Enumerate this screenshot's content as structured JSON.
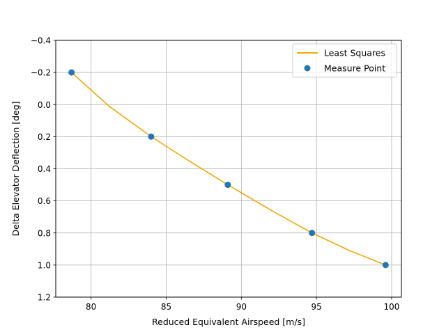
{
  "chart_data": {
    "type": "line",
    "title": "",
    "xlabel": "Reduced Equivalent Airspeed [m/s]",
    "ylabel": "Delta Elevator Deflection [deg]",
    "xlim": [
      77.65,
      100.65
    ],
    "ylim": [
      1.2,
      -0.4
    ],
    "y_inverted": true,
    "grid": true,
    "legend_position": "top-right",
    "xticks": [
      80,
      85,
      90,
      95,
      100
    ],
    "xtick_labels": [
      "80",
      "85",
      "90",
      "95",
      "100"
    ],
    "yticks": [
      -0.4,
      -0.2,
      0.0,
      0.2,
      0.4,
      0.6,
      0.8,
      1.0,
      1.2
    ],
    "ytick_labels": [
      "−0.4",
      "−0.2",
      "0.0",
      "0.2",
      "0.4",
      "0.6",
      "0.8",
      "1.0",
      "1.2"
    ],
    "series": [
      {
        "name": "Least Squares",
        "kind": "line",
        "color": "#f5a800",
        "x": [
          78.7,
          81.2,
          84.0,
          86.5,
          89.1,
          92.0,
          94.7,
          97.2,
          99.6
        ],
        "y": [
          -0.2,
          0.01,
          0.2,
          0.35,
          0.5,
          0.66,
          0.8,
          0.91,
          1.0
        ]
      },
      {
        "name": "Measure Point",
        "kind": "scatter",
        "color": "#1f77b4",
        "x": [
          78.7,
          84.0,
          89.1,
          94.7,
          99.6
        ],
        "y": [
          -0.2,
          0.2,
          0.5,
          0.8,
          1.0
        ]
      }
    ]
  }
}
